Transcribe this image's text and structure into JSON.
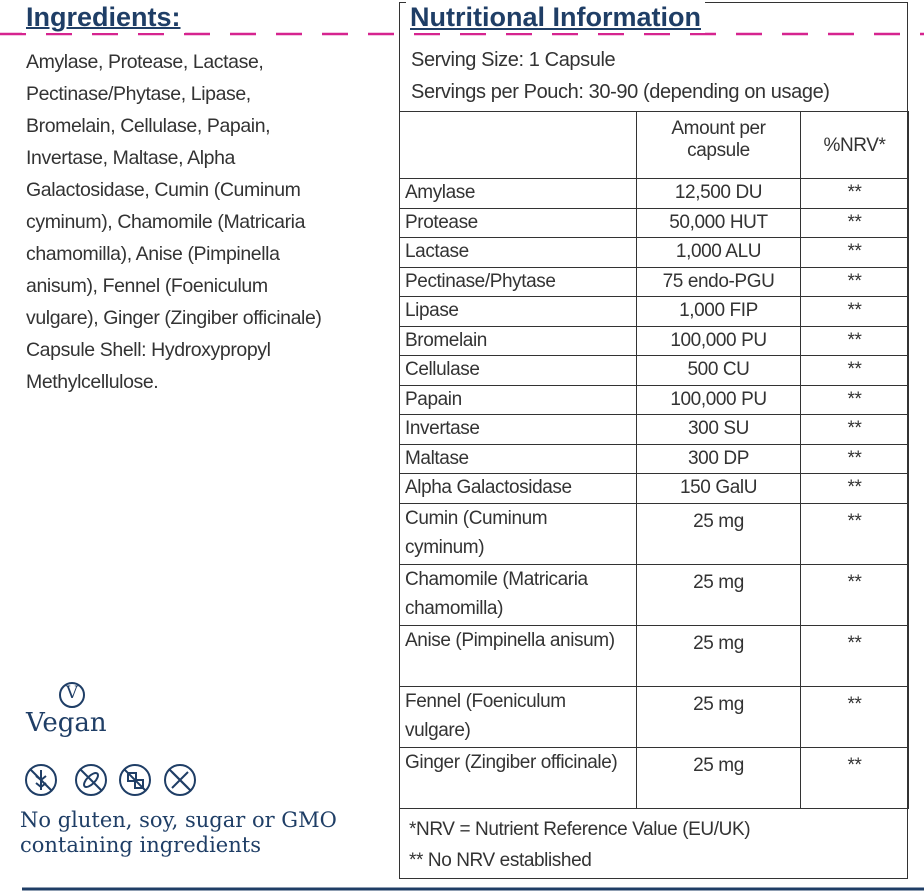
{
  "ingredients": {
    "title": "Ingredients:",
    "lines": [
      "Amylase, Protease, Lactase,",
      "Pectinase/Phytase, Lipase,",
      "Bromelain, Cellulase, Papain,",
      "Invertase, Maltase, Alpha",
      "Galactosidase, Cumin (Cuminum",
      "cyminum), Chamomile (Matricaria",
      "chamomilla), Anise (Pimpinella",
      "anisum), Fennel (Foeniculum",
      "vulgare), Ginger (Zingiber officinale)",
      "Capsule Shell: Hydroxypropyl",
      "Methylcellulose."
    ]
  },
  "vegan": {
    "badge": "V",
    "label": "Vegan"
  },
  "free_from": [
    "No gluten, soy, sugar or GMO",
    "containing ingredients"
  ],
  "nutrition": {
    "title": "Nutritional Information",
    "serving_size": "Serving Size: 1 Capsule",
    "servings": "Servings per Pouch: 30-90 (depending on usage)",
    "columns": [
      "Amount per capsule",
      "%NRV*"
    ],
    "rows": [
      [
        "Amylase",
        "12,500 DU",
        "**"
      ],
      [
        "Protease",
        "50,000 HUT",
        "**"
      ],
      [
        "Lactase",
        "1,000 ALU",
        "**"
      ],
      [
        "Pectinase/Phytase",
        "75 endo-PGU",
        "**"
      ],
      [
        "Lipase",
        "1,000 FIP",
        "**"
      ],
      [
        "Bromelain",
        "100,000 PU",
        "**"
      ],
      [
        "Cellulase",
        "500 CU",
        "**"
      ],
      [
        "Papain",
        "100,000 PU",
        "**"
      ],
      [
        "Invertase",
        "300 SU",
        "**"
      ],
      [
        "Maltase",
        "300 DP",
        "**"
      ],
      [
        "Alpha Galactosidase",
        "150 GalU",
        "**"
      ],
      [
        "Cumin (Cuminum cyminum)",
        "25 mg",
        "**"
      ],
      [
        "Chamomile (Matricaria chamomilla)",
        "25 mg",
        "**"
      ],
      [
        "Anise (Pimpinella anisum)",
        "25 mg",
        "**"
      ],
      [
        "Fennel (Foeniculum vulgare)",
        "25 mg",
        "**"
      ],
      [
        "Ginger (Zingiber officinale)",
        "25 mg",
        "**"
      ]
    ],
    "footnotes": [
      "*NRV = Nutrient Reference Value (EU/UK)",
      "** No NRV established"
    ]
  }
}
